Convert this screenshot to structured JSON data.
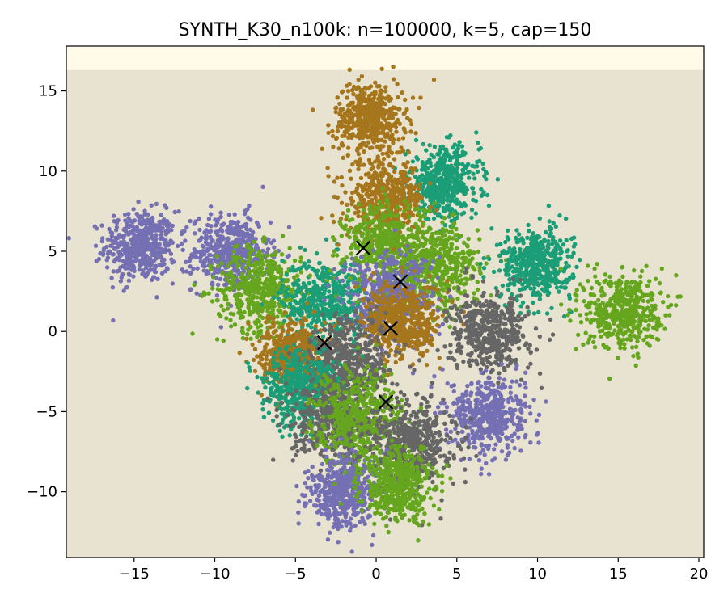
{
  "chart_data": {
    "type": "scatter",
    "title": "SYNTH_K30_n100k: n=100000, k=5, cap=150",
    "xlabel": "",
    "ylabel": "",
    "xlim": [
      -19.2,
      20.3
    ],
    "ylim": [
      -14.1,
      17.8
    ],
    "xticks": [
      -15,
      -10,
      -5,
      0,
      5,
      10,
      15,
      20
    ],
    "yticks": [
      -10,
      -5,
      0,
      5,
      10,
      15
    ],
    "xtick_labels": [
      "−15",
      "−10",
      "−5",
      "0",
      "5",
      "10",
      "15",
      "20"
    ],
    "ytick_labels": [
      "−10",
      "−5",
      "0",
      "5",
      "10",
      "15"
    ],
    "grid": false,
    "legend": "none",
    "background": {
      "plot_bg": "#e8e3d0",
      "top_band": "#fffbe8",
      "band_from_y": 16.3
    },
    "colors": {
      "orange": "#a6761d",
      "teal": "#1b9e77",
      "green": "#66a61e",
      "purple": "#7570b3",
      "gray": "#666666"
    },
    "clusters": [
      {
        "color": "purple",
        "x": -14.6,
        "y": 5.3,
        "spread": 1.1
      },
      {
        "color": "purple",
        "x": -9.0,
        "y": 4.9,
        "spread": 1.2
      },
      {
        "color": "green",
        "x": -7.2,
        "y": 2.6,
        "spread": 1.3
      },
      {
        "color": "teal",
        "x": -3.2,
        "y": 2.0,
        "spread": 1.3
      },
      {
        "color": "orange",
        "x": -0.4,
        "y": 13.3,
        "spread": 1.1
      },
      {
        "color": "teal",
        "x": 4.2,
        "y": 9.3,
        "spread": 1.1
      },
      {
        "color": "orange",
        "x": 0.6,
        "y": 8.2,
        "spread": 1.2
      },
      {
        "color": "green",
        "x": 0.6,
        "y": 5.4,
        "spread": 1.3
      },
      {
        "color": "green",
        "x": 3.8,
        "y": 4.0,
        "spread": 1.3
      },
      {
        "color": "teal",
        "x": 9.9,
        "y": 4.2,
        "spread": 1.1
      },
      {
        "color": "green",
        "x": 15.3,
        "y": 1.3,
        "spread": 1.2
      },
      {
        "color": "purple",
        "x": 0.9,
        "y": 2.2,
        "spread": 1.4
      },
      {
        "color": "orange",
        "x": 1.6,
        "y": 0.6,
        "spread": 1.2
      },
      {
        "color": "gray",
        "x": 7.0,
        "y": -0.1,
        "spread": 1.2
      },
      {
        "color": "orange",
        "x": -5.2,
        "y": -1.4,
        "spread": 1.0
      },
      {
        "color": "gray",
        "x": -1.6,
        "y": -1.9,
        "spread": 1.4
      },
      {
        "color": "teal",
        "x": -4.7,
        "y": -3.6,
        "spread": 1.2
      },
      {
        "color": "gray",
        "x": -2.6,
        "y": -5.5,
        "spread": 1.3
      },
      {
        "color": "green",
        "x": -1.1,
        "y": -5.4,
        "spread": 1.4
      },
      {
        "color": "purple",
        "x": 7.0,
        "y": -5.2,
        "spread": 1.2
      },
      {
        "color": "gray",
        "x": 2.3,
        "y": -6.9,
        "spread": 1.3
      },
      {
        "color": "purple",
        "x": -2.0,
        "y": -10.0,
        "spread": 1.1
      },
      {
        "color": "green",
        "x": 1.3,
        "y": -9.6,
        "spread": 1.1
      }
    ],
    "centroids": [
      {
        "x": -0.8,
        "y": 5.2
      },
      {
        "x": 1.5,
        "y": 3.1
      },
      {
        "x": 0.9,
        "y": 0.2
      },
      {
        "x": -3.2,
        "y": -0.7
      },
      {
        "x": 0.6,
        "y": -4.4
      }
    ]
  }
}
